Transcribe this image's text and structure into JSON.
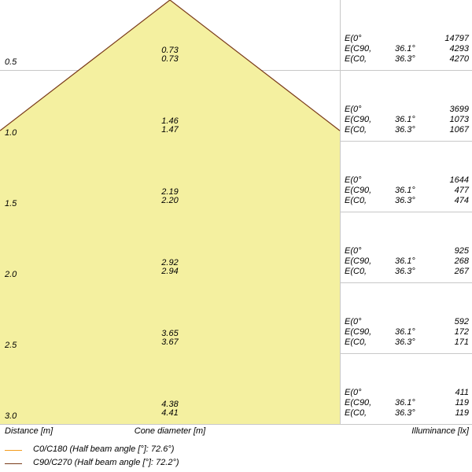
{
  "headers": {
    "distance": "Distance [m]",
    "cone": "Cone diameter [m]",
    "illuminance": "Illuminance [lx]"
  },
  "rows": [
    {
      "distance": "0.5",
      "cone": [
        "0.73",
        "0.73"
      ],
      "ill": [
        [
          "E(0°",
          "",
          "14797"
        ],
        [
          "E(C90,",
          "36.1°",
          "4293"
        ],
        [
          "E(C0,",
          "36.3°",
          "4270"
        ]
      ]
    },
    {
      "distance": "1.0",
      "cone": [
        "1.46",
        "1.47"
      ],
      "ill": [
        [
          "E(0°",
          "",
          "3699"
        ],
        [
          "E(C90,",
          "36.1°",
          "1073"
        ],
        [
          "E(C0,",
          "36.3°",
          "1067"
        ]
      ]
    },
    {
      "distance": "1.5",
      "cone": [
        "2.19",
        "2.20"
      ],
      "ill": [
        [
          "E(0°",
          "",
          "1644"
        ],
        [
          "E(C90,",
          "36.1°",
          "477"
        ],
        [
          "E(C0,",
          "36.3°",
          "474"
        ]
      ]
    },
    {
      "distance": "2.0",
      "cone": [
        "2.92",
        "2.94"
      ],
      "ill": [
        [
          "E(0°",
          "",
          "925"
        ],
        [
          "E(C90,",
          "36.1°",
          "268"
        ],
        [
          "E(C0,",
          "36.3°",
          "267"
        ]
      ]
    },
    {
      "distance": "2.5",
      "cone": [
        "3.65",
        "3.67"
      ],
      "ill": [
        [
          "E(0°",
          "",
          "592"
        ],
        [
          "E(C90,",
          "36.1°",
          "172"
        ],
        [
          "E(C0,",
          "36.3°",
          "171"
        ]
      ]
    },
    {
      "distance": "3.0",
      "cone": [
        "4.38",
        "4.41"
      ],
      "ill": [
        [
          "E(0°",
          "",
          "411"
        ],
        [
          "E(C90,",
          "36.1°",
          "119"
        ],
        [
          "E(C0,",
          "36.3°",
          "119"
        ]
      ]
    }
  ],
  "legend": [
    {
      "label": "C0/C180 (Half beam angle [°]: 72.6°)",
      "color": "#f39c1e"
    },
    {
      "label": "C90/C270 (Half beam angle [°]: 72.2°)",
      "color": "#7a3b1a"
    }
  ],
  "colors": {
    "cone_fill": "#f4f0a0",
    "grid": "#c8c8c8",
    "cone_edge": "#7a3b1a"
  }
}
